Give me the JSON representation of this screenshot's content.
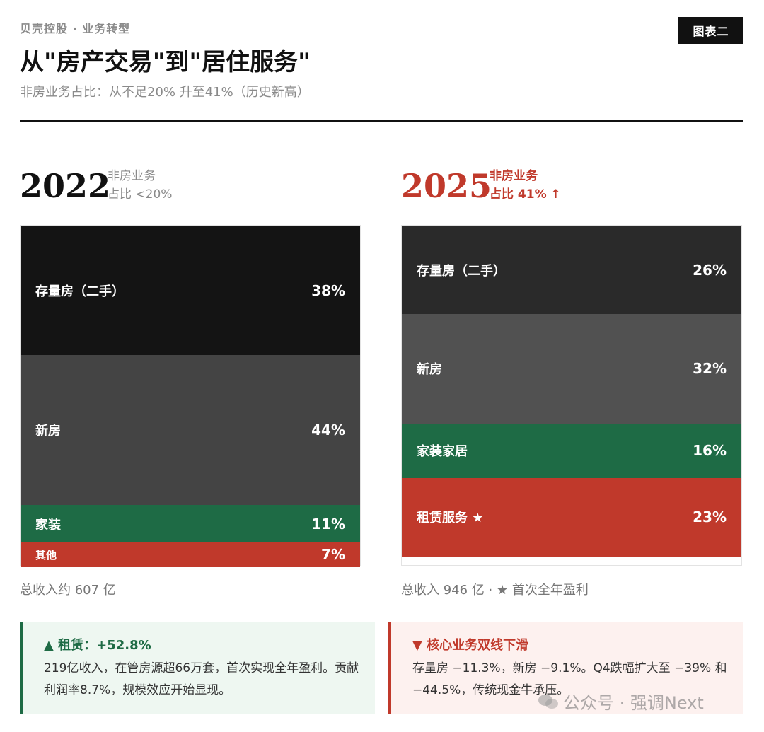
{
  "header": {
    "kicker": "贝壳控股 · 业务转型",
    "badge": "图表二",
    "title": "从\"房产交易\"到\"居住服务\"",
    "subtitle": "非房业务占比：从不足20% 升至41%（历史新高）"
  },
  "chart_data": [
    {
      "type": "bar",
      "stacked": true,
      "title": "2022",
      "note": [
        "非房业务",
        "占比 <20%"
      ],
      "categories": [
        "存量房（二手）",
        "新房",
        "家装",
        "其他"
      ],
      "values": [
        38,
        44,
        11,
        7
      ],
      "value_labels": [
        "38%",
        "44%",
        "11%",
        "7%"
      ],
      "colors": [
        "#141414",
        "#444444",
        "#1e6b45",
        "#c0392b"
      ],
      "total": "总收入约 607 亿"
    },
    {
      "type": "bar",
      "stacked": true,
      "title": "2025",
      "note": [
        "非房业务",
        "占比 41% ↑"
      ],
      "categories": [
        "存量房（二手）",
        "新房",
        "家装家居",
        "租赁服务 ★"
      ],
      "values": [
        26,
        32,
        16,
        23
      ],
      "value_labels": [
        "26%",
        "32%",
        "16%",
        "23%"
      ],
      "colors": [
        "#2a2a2a",
        "#515151",
        "#1e6b45",
        "#c0392b"
      ],
      "total": "总收入 946 亿 · ★ 首次全年盈利"
    }
  ],
  "cards": {
    "left": {
      "head": "▲ 租赁：+52.8%",
      "body": "219亿收入，在管房源超66万套，首次实现全年盈利。贡献利润率8.7%，规模效应开始显现。"
    },
    "right": {
      "head": "▼ 核心业务双线下滑",
      "body": "存量房 −11.3%，新房 −9.1%。Q4跌幅扩大至 −39% 和 −44.5%，传统现金牛承压。"
    }
  },
  "watermark": "公众号 · 强调Next"
}
